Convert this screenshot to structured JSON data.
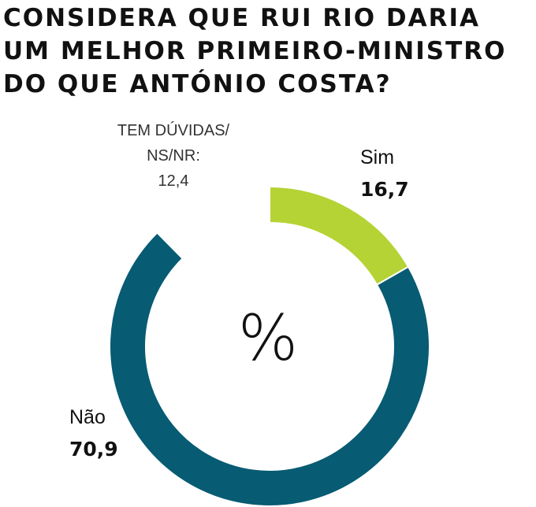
{
  "title_lines": [
    "CONSIDERA QUE RUI RIO DARIA",
    "UM MELHOR PRIMEIRO-MINISTRO",
    "DO QUE ANTÓNIO COSTA?"
  ],
  "center_symbol": "%",
  "chart_data": {
    "type": "pie",
    "title": "CONSIDERA QUE RUI RIO DARIA UM MELHOR PRIMEIRO-MINISTRO DO QUE ANTÓNIO COSTA?",
    "unit": "%",
    "slices": [
      {
        "label": "Sim",
        "value": 16.7,
        "display": "16,7",
        "color": "#b5d335"
      },
      {
        "label": "Não",
        "value": 70.9,
        "display": "70,9",
        "color": "#075b73"
      },
      {
        "label_lines": [
          "TEM DÚVIDAS/",
          "NS/NR:"
        ],
        "value": 12.4,
        "display": "12,4",
        "color": "#ffffff"
      }
    ]
  }
}
